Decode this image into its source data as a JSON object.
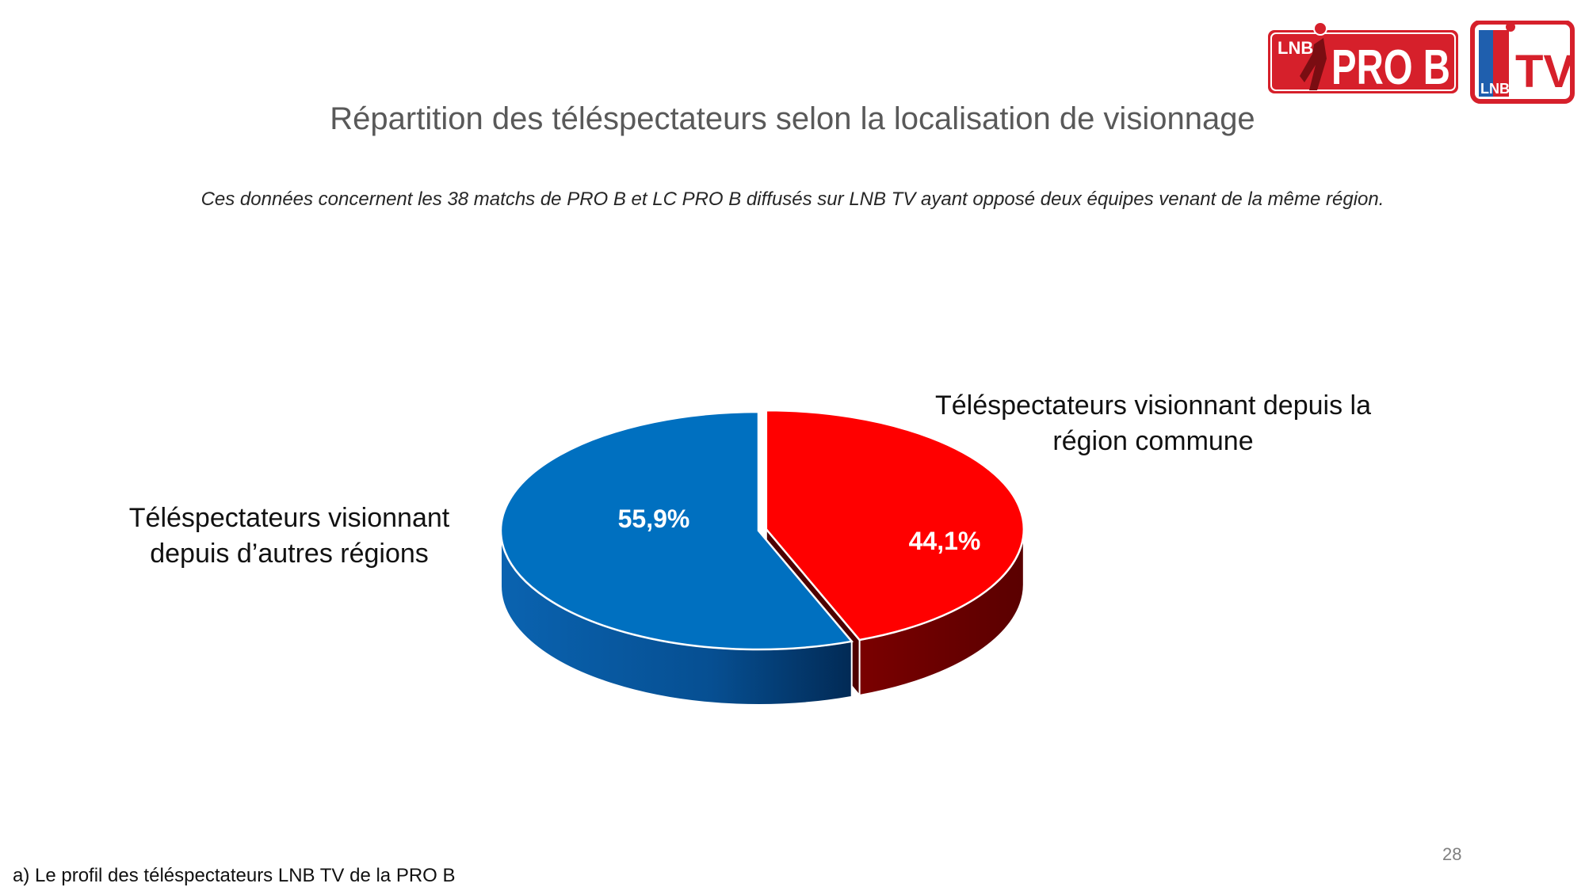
{
  "header": {
    "logo_prob_text_1": "LNB",
    "logo_prob_text_2": "PRO B",
    "logo_tv_text_1": "LNB",
    "logo_tv_text_2": "TV"
  },
  "colors": {
    "blue": "#0070C0",
    "blue_dark": "#003A6B",
    "red": "#FF0000",
    "red_dark": "#6B0000",
    "logo_red": "#D6202B"
  },
  "chart_data": {
    "type": "pie",
    "title": "Répartition des téléspectateurs selon la localisation de visionnage",
    "subtitle": "Ces données concernent les 38 matchs de PRO B et LC PRO B diffusés sur LNB TV ayant opposé deux équipes venant de la même région.",
    "slices": [
      {
        "label": "Téléspectateurs visionnant depuis la région commune",
        "value": 44.1,
        "value_label": "44,1%",
        "color": "#FF0000",
        "exploded": true
      },
      {
        "label": "Téléspectateurs visionnant depuis d’autres régions",
        "value": 55.9,
        "value_label": "55,9%",
        "color": "#0070C0",
        "exploded": false
      }
    ],
    "style": "3d"
  },
  "footer": {
    "section": "a) Le profil des téléspectateurs LNB TV de la PRO B",
    "page_number": "28"
  }
}
